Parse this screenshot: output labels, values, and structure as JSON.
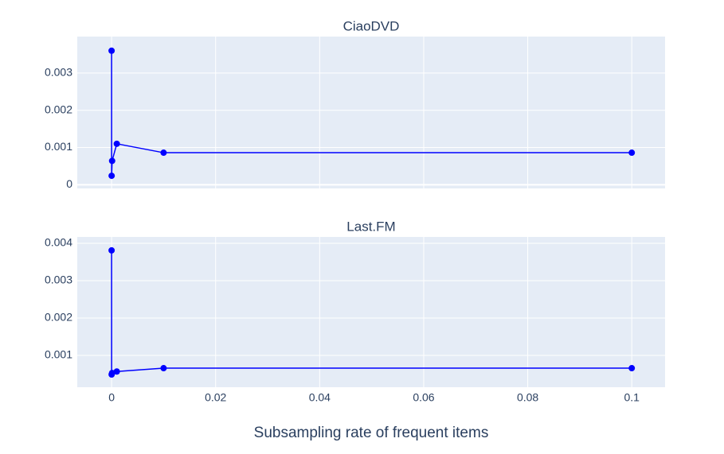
{
  "chart_data": [
    {
      "type": "line",
      "title": "CiaoDVD",
      "color": "#0000ff",
      "grid": true,
      "x": [
        0,
        1e-05,
        0.0001,
        0.001,
        0.01,
        0.1
      ],
      "values": [
        0.0036,
        0.00024,
        0.00064,
        0.0011,
        0.00086,
        0.00086
      ],
      "xlim": [
        -0.0066,
        0.1064
      ],
      "ylim": [
        -0.0001,
        0.00398
      ],
      "yticks": [
        0,
        0.001,
        0.002,
        0.003
      ]
    },
    {
      "type": "line",
      "title": "Last.FM",
      "color": "#0000ff",
      "grid": true,
      "xlabel": "Subsampling rate of frequent items",
      "x": [
        0,
        1e-05,
        0.0001,
        0.001,
        0.01,
        0.1
      ],
      "values": [
        0.00381,
        0.00049,
        0.00053,
        0.00057,
        0.00066,
        0.00066
      ],
      "xlim": [
        -0.0066,
        0.1064
      ],
      "ylim": [
        0.00015,
        0.00417
      ],
      "xticks": [
        0,
        0.02,
        0.04,
        0.06,
        0.08,
        0.1
      ],
      "yticks": [
        0.001,
        0.002,
        0.003,
        0.004
      ]
    }
  ]
}
